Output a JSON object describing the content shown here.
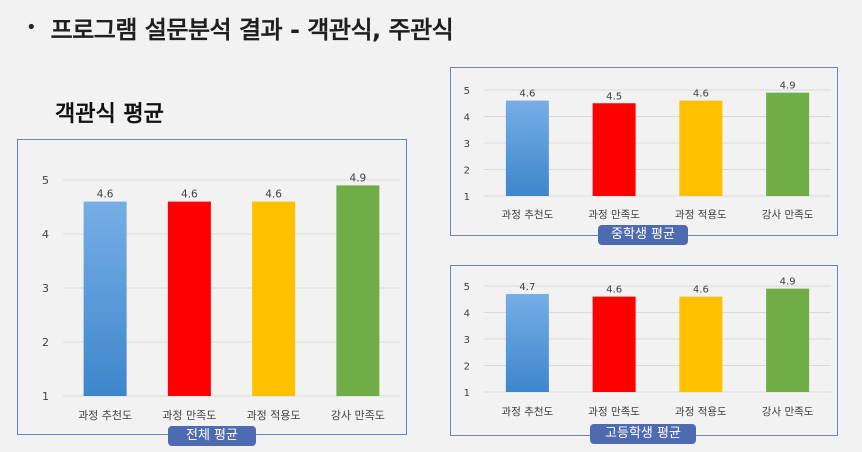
{
  "page": {
    "bullet": "•",
    "title": "프로그램 설문분석 결과 - 객관식, 주관식"
  },
  "section_title": "객관식 평균",
  "colors": {
    "bar_blue_top": "#76aee6",
    "bar_blue_bottom": "#3e86cc",
    "bar_red": "#ff0000",
    "bar_yellow": "#ffc000",
    "bar_green": "#70ad47",
    "caption_bg": "#4e6ab0",
    "panel_border": "#6f80c4"
  },
  "chart_data": [
    {
      "id": "overall",
      "type": "bar",
      "title": "",
      "caption": "전체 평균",
      "categories": [
        "과정 추천도",
        "과정 만족도",
        "과정 적용도",
        "강사 만족도"
      ],
      "values": [
        4.6,
        4.6,
        4.6,
        4.9
      ],
      "value_labels": [
        "4.6",
        "4.6",
        "4.6",
        "4.9"
      ],
      "ylim": [
        1,
        5
      ],
      "yticks": [
        "1",
        "2",
        "3",
        "4",
        "5"
      ],
      "grid": true,
      "legend": "none"
    },
    {
      "id": "middle",
      "type": "bar",
      "title": "",
      "caption": "중학생 평균",
      "categories": [
        "과정 추천도",
        "과정 만족도",
        "과정 적용도",
        "강사 만족도"
      ],
      "values": [
        4.6,
        4.5,
        4.6,
        4.9
      ],
      "value_labels": [
        "4.6",
        "4.5",
        "4.6",
        "4.9"
      ],
      "ylim": [
        1,
        5
      ],
      "yticks": [
        "1",
        "2",
        "3",
        "4",
        "5"
      ],
      "grid": true,
      "legend": "none"
    },
    {
      "id": "high",
      "type": "bar",
      "title": "",
      "caption": "고등학생 평균",
      "categories": [
        "과정 추천도",
        "과정 만족도",
        "과정 적용도",
        "강사 만족도"
      ],
      "values": [
        4.7,
        4.6,
        4.6,
        4.9
      ],
      "value_labels": [
        "4.7",
        "4.6",
        "4.6",
        "4.9"
      ],
      "ylim": [
        1,
        5
      ],
      "yticks": [
        "1",
        "2",
        "3",
        "4",
        "5"
      ],
      "grid": true,
      "legend": "none"
    }
  ]
}
